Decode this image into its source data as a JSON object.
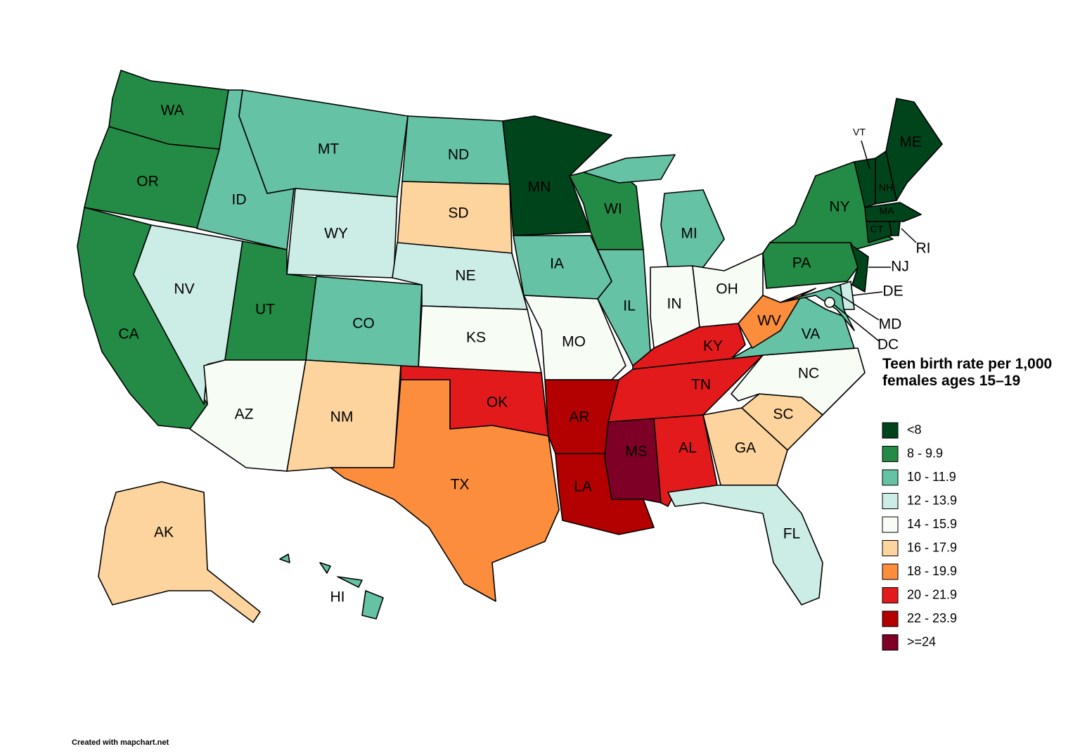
{
  "legend": {
    "title": "Teen birth rate per 1,000 females ages 15–19",
    "items": [
      {
        "label": "<8",
        "color": "#00441b"
      },
      {
        "label": "8 - 9.9",
        "color": "#238b45"
      },
      {
        "label": "10 - 11.9",
        "color": "#66c2a4"
      },
      {
        "label": "12 - 13.9",
        "color": "#ccece6"
      },
      {
        "label": "14 - 15.9",
        "color": "#f7fcf5"
      },
      {
        "label": "16 - 17.9",
        "color": "#fdd49e"
      },
      {
        "label": "18 - 19.9",
        "color": "#fc8d3c"
      },
      {
        "label": "20 - 21.9",
        "color": "#e31a1c"
      },
      {
        "label": "22 - 23.9",
        "color": "#b30000"
      },
      {
        "label": ">=24",
        "color": "#7f0026"
      }
    ]
  },
  "states": [
    {
      "label": "WA",
      "bin": 1
    },
    {
      "label": "OR",
      "bin": 1
    },
    {
      "label": "CA",
      "bin": 1
    },
    {
      "label": "NV",
      "bin": 3
    },
    {
      "label": "ID",
      "bin": 2
    },
    {
      "label": "MT",
      "bin": 2
    },
    {
      "label": "WY",
      "bin": 3
    },
    {
      "label": "UT",
      "bin": 1
    },
    {
      "label": "CO",
      "bin": 2
    },
    {
      "label": "AZ",
      "bin": 4
    },
    {
      "label": "NM",
      "bin": 5
    },
    {
      "label": "ND",
      "bin": 2
    },
    {
      "label": "SD",
      "bin": 5
    },
    {
      "label": "NE",
      "bin": 3
    },
    {
      "label": "KS",
      "bin": 4
    },
    {
      "label": "OK",
      "bin": 7
    },
    {
      "label": "TX",
      "bin": 6
    },
    {
      "label": "MN",
      "bin": 0
    },
    {
      "label": "IA",
      "bin": 2
    },
    {
      "label": "MO",
      "bin": 4
    },
    {
      "label": "AR",
      "bin": 8
    },
    {
      "label": "LA",
      "bin": 8
    },
    {
      "label": "MS",
      "bin": 9
    },
    {
      "label": "AL",
      "bin": 7
    },
    {
      "label": "WI",
      "bin": 1
    },
    {
      "label": "IL",
      "bin": 2
    },
    {
      "label": "MI",
      "bin": 2
    },
    {
      "label": "IN",
      "bin": 4
    },
    {
      "label": "OH",
      "bin": 4
    },
    {
      "label": "KY",
      "bin": 7
    },
    {
      "label": "TN",
      "bin": 7
    },
    {
      "label": "GA",
      "bin": 5
    },
    {
      "label": "SC",
      "bin": 5
    },
    {
      "label": "NC",
      "bin": 4
    },
    {
      "label": "FL",
      "bin": 3
    },
    {
      "label": "VA",
      "bin": 2
    },
    {
      "label": "WV",
      "bin": 6
    },
    {
      "label": "PA",
      "bin": 1
    },
    {
      "label": "NY",
      "bin": 1
    },
    {
      "label": "VT",
      "bin": 0
    },
    {
      "label": "NH",
      "bin": 0
    },
    {
      "label": "ME",
      "bin": 0
    },
    {
      "label": "MA",
      "bin": 0
    },
    {
      "label": "CT",
      "bin": 0
    },
    {
      "label": "RI",
      "bin": 0
    },
    {
      "label": "NJ",
      "bin": 0
    },
    {
      "label": "DE",
      "bin": 3
    },
    {
      "label": "MD",
      "bin": 2
    },
    {
      "label": "DC",
      "bin": 4
    },
    {
      "label": "AK",
      "bin": 5
    },
    {
      "label": "HI",
      "bin": 2
    }
  ],
  "credit": "Created with mapchart.net"
}
